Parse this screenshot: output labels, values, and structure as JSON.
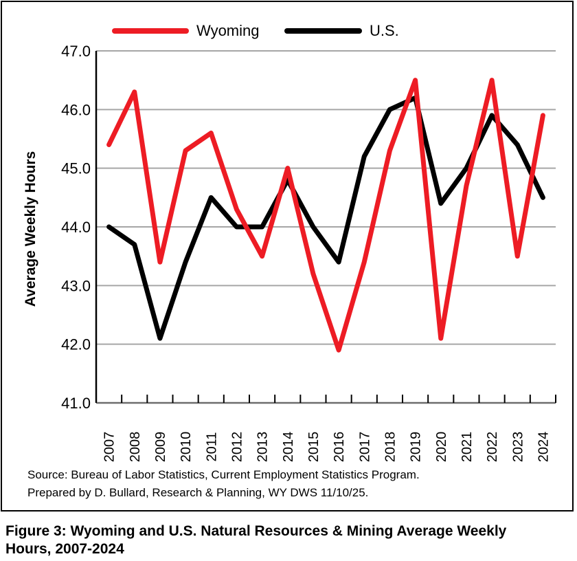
{
  "chart_data": {
    "type": "line",
    "title": "Figure 3: Wyoming and U.S. Natural Resources & Mining Average Weekly Hours, 2007-2024",
    "xlabel": "",
    "ylabel": "Average Weekly Hours",
    "ylim": [
      41.0,
      47.0
    ],
    "yticks": [
      "41.0",
      "42.0",
      "43.0",
      "44.0",
      "45.0",
      "46.0",
      "47.0"
    ],
    "ytick_values": [
      41,
      42,
      43,
      44,
      45,
      46,
      47
    ],
    "grid": true,
    "legend_position": "top",
    "categories": [
      "2007",
      "2008",
      "2009",
      "2010",
      "2011",
      "2012",
      "2013",
      "2014",
      "2015",
      "2016",
      "2017",
      "2018",
      "2019",
      "2020",
      "2021",
      "2022",
      "2023",
      "2024"
    ],
    "series": [
      {
        "name": "Wyoming",
        "color": "#ed1c24",
        "values": [
          45.4,
          46.3,
          43.4,
          45.3,
          45.6,
          44.3,
          43.5,
          45.0,
          43.2,
          41.9,
          43.4,
          45.3,
          46.5,
          42.1,
          44.7,
          46.5,
          43.5,
          45.9
        ]
      },
      {
        "name": "U.S.",
        "color": "#000000",
        "values": [
          44.0,
          43.7,
          42.1,
          43.4,
          44.5,
          44.0,
          44.0,
          44.8,
          44.0,
          43.4,
          45.2,
          46.0,
          46.2,
          44.4,
          45.0,
          45.9,
          45.4,
          44.5
        ]
      }
    ]
  },
  "source_lines": [
    "Source: Bureau of Labor Statistics, Current Employment Statistics Program.",
    "Prepared by D. Bullard, Research & Planning, WY DWS 11/10/25."
  ],
  "caption_line1": "Figure 3: Wyoming and U.S. Natural Resources & Mining Average Weekly",
  "caption_line2": "Hours, 2007-2024"
}
